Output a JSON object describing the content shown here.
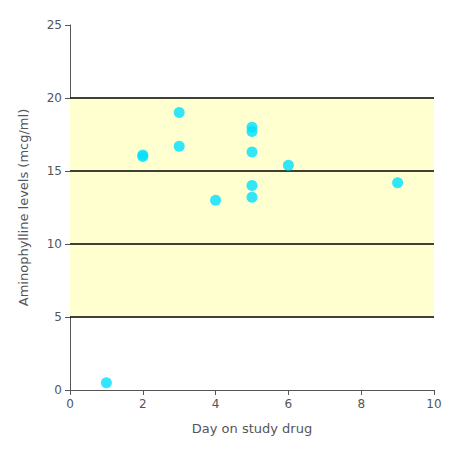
{
  "chart_data": {
    "type": "scatter",
    "x": [
      1,
      2,
      2,
      3,
      3,
      4,
      5,
      5,
      5,
      5,
      5,
      6,
      9
    ],
    "y": [
      0.5,
      16.0,
      16.1,
      19.0,
      16.7,
      13.0,
      18.0,
      17.7,
      16.3,
      14.0,
      13.2,
      15.4,
      14.2
    ],
    "color": "#00e0ff",
    "xlabel": "Day on study drug",
    "ylabel": "Aminophylline levels (mcg/ml)",
    "xlim": [
      0,
      10
    ],
    "xticks": [
      0,
      2,
      4,
      6,
      8,
      10
    ],
    "ylim": [
      0,
      25
    ],
    "yticks": [
      0,
      5,
      10,
      15,
      20,
      25
    ],
    "band": {
      "values": [
        5,
        20
      ],
      "color": "#ffffd0"
    },
    "hlines": {
      "values": [
        5,
        10,
        15,
        20
      ],
      "color": "#000000"
    },
    "grid": false
  }
}
